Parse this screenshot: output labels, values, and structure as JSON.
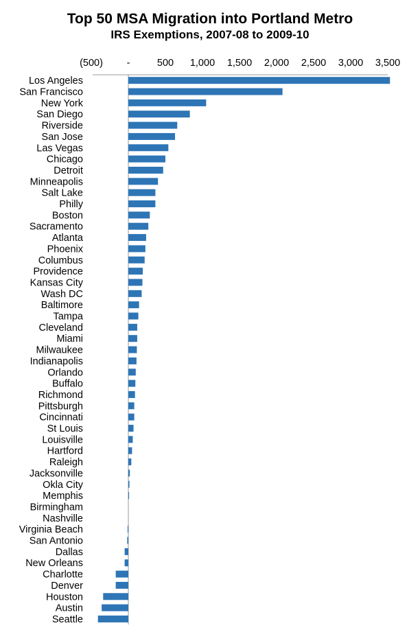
{
  "chart_data": {
    "type": "bar",
    "orientation": "horizontal",
    "title": "Top 50 MSA Migration into Portland Metro",
    "subtitle": "IRS Exemptions, 2007-08 to 2009-10",
    "xlim": [
      -500,
      3500
    ],
    "x_ticks": [
      -500,
      0,
      500,
      1000,
      1500,
      2000,
      2500,
      3000,
      3500
    ],
    "x_tick_labels": [
      "(500)",
      "-",
      "500",
      "1,000",
      "1,500",
      "2,000",
      "2,500",
      "3,000",
      "3,500"
    ],
    "axis_position": "top",
    "grid": false,
    "bar_color": "#2E75B6",
    "categories": [
      "Los Angeles",
      "San Francisco",
      "New York",
      "San Diego",
      "Riverside",
      "San Jose",
      "Las Vegas",
      "Chicago",
      "Detroit",
      "Minneapolis",
      "Salt Lake",
      "Philly",
      "Boston",
      "Sacramento",
      "Atlanta",
      "Phoenix",
      "Columbus",
      "Providence",
      "Kansas City",
      "Wash DC",
      "Baltimore",
      "Tampa",
      "Cleveland",
      "Miami",
      "Milwaukee",
      "Indianapolis",
      "Orlando",
      "Buffalo",
      "Richmond",
      "Pittsburgh",
      "Cincinnati",
      "St Louis",
      "Louisville",
      "Hartford",
      "Raleigh",
      "Jacksonville",
      "Okla City",
      "Memphis",
      "Birmingham",
      "Nashville",
      "Virginia Beach",
      "San Antonio",
      "Dallas",
      "New Orleans",
      "Charlotte",
      "Denver",
      "Houston",
      "Austin",
      "Seattle"
    ],
    "values": [
      3530,
      2080,
      1050,
      830,
      660,
      630,
      540,
      500,
      470,
      400,
      365,
      365,
      290,
      270,
      240,
      230,
      220,
      195,
      190,
      180,
      145,
      135,
      120,
      120,
      115,
      110,
      100,
      95,
      90,
      80,
      80,
      70,
      60,
      50,
      40,
      20,
      15,
      10,
      0,
      0,
      -10,
      -15,
      -50,
      -50,
      -170,
      -170,
      -340,
      -360,
      -410
    ]
  }
}
